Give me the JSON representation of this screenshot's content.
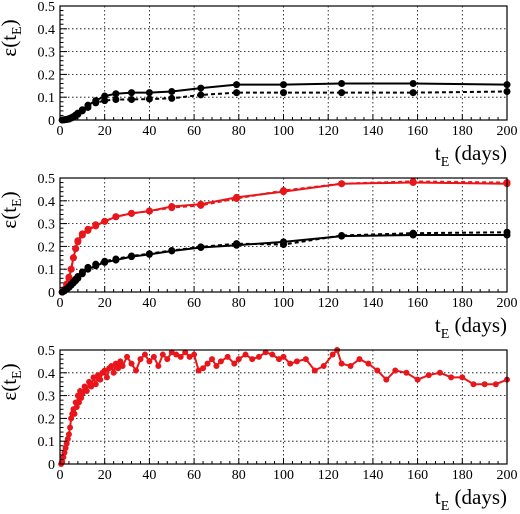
{
  "chart_data": [
    {
      "type": "line",
      "ylabel": {
        "main": "ε(t",
        "sub": "E",
        "close": ")"
      },
      "xlabel": {
        "main": "t",
        "sub": "E",
        "rest": " (days)"
      },
      "xlim": [
        0,
        200
      ],
      "ylim": [
        0,
        0.5
      ],
      "xticks": [
        "0",
        "20",
        "40",
        "60",
        "80",
        "100",
        "120",
        "140",
        "160",
        "180",
        "200"
      ],
      "yticks": [
        "0",
        "0.1",
        "0.2",
        "0.3",
        "0.4",
        "0.5"
      ],
      "grid": true,
      "series": [
        {
          "style": "solid",
          "color": "#000000",
          "x": [
            1,
            2,
            3,
            4,
            5,
            6,
            7,
            8,
            10,
            12.5,
            16,
            20,
            25,
            32,
            40,
            50,
            63,
            79,
            100,
            126,
            158,
            200
          ],
          "y": [
            0.0,
            0.001,
            0.003,
            0.006,
            0.01,
            0.015,
            0.022,
            0.03,
            0.045,
            0.065,
            0.085,
            0.105,
            0.115,
            0.12,
            0.12,
            0.125,
            0.14,
            0.155,
            0.155,
            0.16,
            0.16,
            0.155
          ]
        },
        {
          "style": "dashed",
          "color": "#000000",
          "x": [
            1,
            2,
            3,
            4,
            5,
            6,
            7,
            8,
            10,
            12.5,
            16,
            20,
            25,
            32,
            40,
            50,
            63,
            79,
            100,
            126,
            158,
            200
          ],
          "y": [
            0.0,
            0.001,
            0.002,
            0.004,
            0.008,
            0.012,
            0.018,
            0.025,
            0.04,
            0.055,
            0.075,
            0.085,
            0.09,
            0.09,
            0.092,
            0.095,
            0.11,
            0.12,
            0.12,
            0.12,
            0.12,
            0.125
          ]
        }
      ]
    },
    {
      "type": "line",
      "ylabel": {
        "main": "ε(t",
        "sub": "E",
        "close": ")"
      },
      "xlabel": {
        "main": "t",
        "sub": "E",
        "rest": " (days)"
      },
      "xlim": [
        0,
        200
      ],
      "ylim": [
        0,
        0.5
      ],
      "xticks": [
        "0",
        "20",
        "40",
        "60",
        "80",
        "100",
        "120",
        "140",
        "160",
        "180",
        "200"
      ],
      "yticks": [
        "0",
        "0.1",
        "0.2",
        "0.3",
        "0.4",
        "0.5"
      ],
      "grid": true,
      "series": [
        {
          "style": "solid",
          "color": "#e8161b",
          "x": [
            1,
            2,
            3,
            4,
            5,
            6,
            7,
            8,
            10,
            12.5,
            16,
            20,
            25,
            32,
            40,
            50,
            63,
            79,
            100,
            126,
            158,
            200
          ],
          "y": [
            0.0,
            0.01,
            0.03,
            0.06,
            0.1,
            0.15,
            0.19,
            0.22,
            0.25,
            0.27,
            0.29,
            0.31,
            0.33,
            0.345,
            0.355,
            0.375,
            0.385,
            0.415,
            0.44,
            0.475,
            0.48,
            0.475
          ]
        },
        {
          "style": "dashed",
          "color": "#e8161b",
          "x": [
            1,
            2,
            3,
            4,
            5,
            6,
            7,
            8,
            10,
            12.5,
            16,
            20,
            25,
            32,
            40,
            50,
            63,
            79,
            100,
            126,
            158,
            200
          ],
          "y": [
            0.0,
            0.012,
            0.035,
            0.065,
            0.1,
            0.15,
            0.19,
            0.225,
            0.255,
            0.275,
            0.295,
            0.31,
            0.33,
            0.345,
            0.355,
            0.37,
            0.38,
            0.41,
            0.445,
            0.475,
            0.485,
            0.48
          ]
        },
        {
          "style": "solid",
          "color": "#000000",
          "x": [
            1,
            2,
            3,
            4,
            5,
            6,
            7,
            8,
            10,
            12.5,
            16,
            20,
            25,
            32,
            40,
            50,
            63,
            79,
            100,
            126,
            158,
            200
          ],
          "y": [
            0.0,
            0.005,
            0.012,
            0.02,
            0.03,
            0.04,
            0.05,
            0.06,
            0.08,
            0.1,
            0.115,
            0.13,
            0.14,
            0.155,
            0.165,
            0.18,
            0.195,
            0.205,
            0.22,
            0.245,
            0.25,
            0.25
          ]
        },
        {
          "style": "dashed",
          "color": "#000000",
          "x": [
            1,
            2,
            3,
            4,
            5,
            6,
            7,
            8,
            10,
            12.5,
            16,
            20,
            25,
            32,
            40,
            50,
            63,
            79,
            100,
            126,
            158,
            200
          ],
          "y": [
            0.0,
            0.006,
            0.014,
            0.023,
            0.034,
            0.045,
            0.056,
            0.068,
            0.088,
            0.108,
            0.122,
            0.135,
            0.145,
            0.158,
            0.168,
            0.182,
            0.198,
            0.212,
            0.208,
            0.248,
            0.258,
            0.262
          ]
        }
      ]
    },
    {
      "type": "line",
      "ylabel": {
        "main": "ε(t",
        "sub": "E",
        "close": ")"
      },
      "xlabel": {
        "main": "t",
        "sub": "E",
        "rest": " (days)"
      },
      "xlim": [
        0,
        200
      ],
      "ylim": [
        0,
        0.5
      ],
      "xticks": [
        "0",
        "20",
        "40",
        "60",
        "80",
        "100",
        "120",
        "140",
        "160",
        "180",
        "200"
      ],
      "yticks": [
        "0",
        "0.1",
        "0.2",
        "0.3",
        "0.4",
        "0.5"
      ],
      "grid": true,
      "series": [
        {
          "style": "solid",
          "color": "#e8161b",
          "x": [
            0.5,
            1,
            1.5,
            2,
            2.5,
            3,
            3.5,
            4,
            4.5,
            5,
            5.5,
            6,
            6.5,
            7,
            7.5,
            8,
            8.5,
            9,
            9.5,
            10,
            11,
            12,
            13,
            14,
            15,
            16,
            17,
            18,
            19,
            20,
            21,
            22,
            23,
            24,
            25,
            26,
            27,
            28,
            30,
            32,
            34,
            36,
            38,
            40,
            42,
            44,
            46,
            48,
            50,
            52,
            54,
            56,
            58,
            60,
            62,
            64,
            66,
            68,
            70,
            72,
            75,
            78,
            80,
            83,
            86,
            89,
            92,
            95,
            98,
            100,
            103,
            106,
            110,
            114,
            118,
            122,
            124,
            126,
            130,
            134,
            138,
            142,
            146,
            150,
            155,
            160,
            165,
            170,
            175,
            180,
            185,
            190,
            195,
            200
          ],
          "y": [
            0.0,
            0.01,
            0.03,
            0.05,
            0.07,
            0.09,
            0.11,
            0.13,
            0.16,
            0.2,
            0.22,
            0.24,
            0.22,
            0.27,
            0.25,
            0.3,
            0.27,
            0.32,
            0.29,
            0.31,
            0.34,
            0.32,
            0.36,
            0.34,
            0.38,
            0.35,
            0.39,
            0.37,
            0.4,
            0.41,
            0.38,
            0.42,
            0.43,
            0.4,
            0.44,
            0.42,
            0.45,
            0.43,
            0.47,
            0.44,
            0.41,
            0.46,
            0.48,
            0.45,
            0.47,
            0.43,
            0.48,
            0.46,
            0.49,
            0.48,
            0.47,
            0.49,
            0.47,
            0.48,
            0.41,
            0.42,
            0.44,
            0.46,
            0.43,
            0.45,
            0.47,
            0.44,
            0.46,
            0.48,
            0.46,
            0.47,
            0.49,
            0.48,
            0.46,
            0.47,
            0.44,
            0.45,
            0.46,
            0.41,
            0.43,
            0.48,
            0.5,
            0.44,
            0.43,
            0.46,
            0.44,
            0.41,
            0.37,
            0.41,
            0.4,
            0.37,
            0.39,
            0.4,
            0.38,
            0.38,
            0.35,
            0.35,
            0.35,
            0.37
          ]
        }
      ]
    }
  ]
}
